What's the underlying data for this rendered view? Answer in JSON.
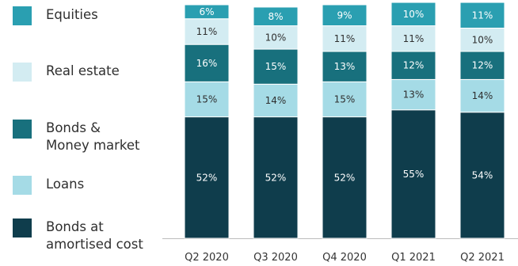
{
  "chart_data": {
    "type": "bar",
    "stacked": true,
    "percent": true,
    "categories": [
      "Q2 2020",
      "Q3 2020",
      "Q4 2020",
      "Q1 2021",
      "Q2 2021"
    ],
    "series": [
      {
        "name": "Bonds at\namortised cost",
        "color": "#0f3d4c",
        "label_color": "#ffffff",
        "values": [
          52,
          52,
          52,
          55,
          54
        ]
      },
      {
        "name": "Loans",
        "color": "#a5dbe6",
        "label_color": "#2f2f2f",
        "values": [
          15,
          14,
          15,
          13,
          14
        ]
      },
      {
        "name": "Bonds &\nMoney market",
        "color": "#18707d",
        "label_color": "#ffffff",
        "values": [
          16,
          15,
          13,
          12,
          12
        ]
      },
      {
        "name": "Real estate",
        "color": "#d3ecf2",
        "label_color": "#2f2f2f",
        "values": [
          11,
          10,
          11,
          11,
          10
        ]
      },
      {
        "name": "Equities",
        "color": "#2a9fb1",
        "label_color": "#ffffff",
        "values": [
          6,
          8,
          9,
          10,
          11
        ]
      }
    ],
    "legend_order": [
      "Equities",
      "Real estate",
      "Bonds &\nMoney market",
      "Loans",
      "Bonds at\namortised cost"
    ],
    "legend_position": "left",
    "grid": false,
    "ylim": [
      0,
      100
    ]
  }
}
